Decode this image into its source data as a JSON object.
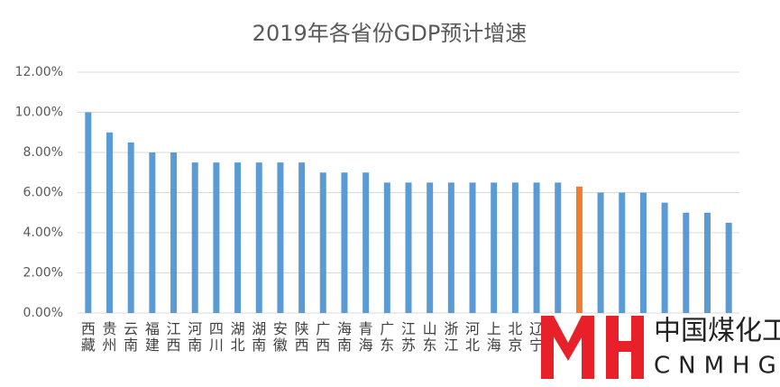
{
  "chart_data": {
    "type": "bar",
    "title": "2019年各省份GDP预计增速",
    "categories": [
      "西藏",
      "贵州",
      "云南",
      "福建",
      "江西",
      "河南",
      "四川",
      "湖北",
      "湖南",
      "安徽",
      "陕西",
      "广西",
      "海南",
      "青海",
      "广东",
      "江苏",
      "山东",
      "浙江",
      "河北",
      "上海",
      "北京",
      "辽宁",
      null,
      null,
      null,
      null,
      null,
      null,
      null,
      null,
      null
    ],
    "values": [
      10,
      9,
      8.5,
      8,
      8,
      7.5,
      7.5,
      7.5,
      7.5,
      7.5,
      7.5,
      7,
      7,
      7,
      6.5,
      6.5,
      6.5,
      6.5,
      6.5,
      6.5,
      6.5,
      6.5,
      6.5,
      6.3,
      6,
      6,
      6,
      5.5,
      5,
      5,
      4.5
    ],
    "colors": [
      "#5b9bd5",
      "#5b9bd5",
      "#5b9bd5",
      "#5b9bd5",
      "#5b9bd5",
      "#5b9bd5",
      "#5b9bd5",
      "#5b9bd5",
      "#5b9bd5",
      "#5b9bd5",
      "#5b9bd5",
      "#5b9bd5",
      "#5b9bd5",
      "#5b9bd5",
      "#5b9bd5",
      "#5b9bd5",
      "#5b9bd5",
      "#5b9bd5",
      "#5b9bd5",
      "#5b9bd5",
      "#5b9bd5",
      "#5b9bd5",
      "#5b9bd5",
      "#ed7d31",
      "#5b9bd5",
      "#5b9bd5",
      "#5b9bd5",
      "#5b9bd5",
      "#5b9bd5",
      "#5b9bd5",
      "#5b9bd5"
    ],
    "ylim": [
      0,
      12
    ],
    "yticks": [
      {
        "value": 0,
        "label": "0.00%"
      },
      {
        "value": 2,
        "label": "2.00%"
      },
      {
        "value": 4,
        "label": "4.00%"
      },
      {
        "value": 6,
        "label": "6.00%"
      },
      {
        "value": 8,
        "label": "8.00%"
      },
      {
        "value": 10,
        "label": "10.00%"
      },
      {
        "value": 12,
        "label": "12.00%"
      }
    ],
    "grid": true
  },
  "watermark": {
    "name": "中国煤化工",
    "code": "CNMHG"
  }
}
